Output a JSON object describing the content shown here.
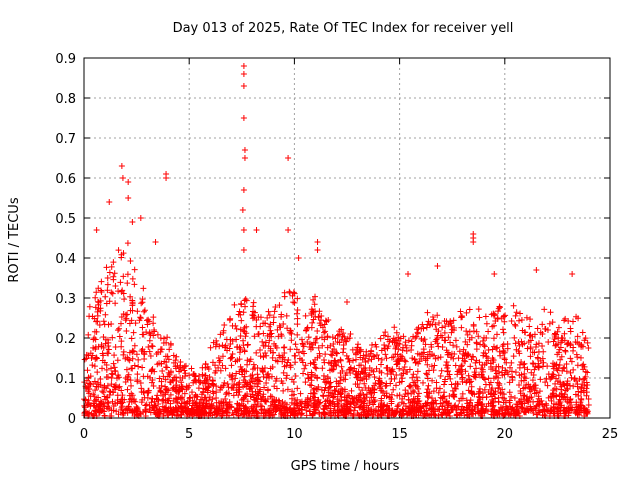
{
  "chart_data": {
    "type": "scatter",
    "title": "Day 013 of 2025, Rate Of TEC Index for receiver yell",
    "xlabel": "GPS time / hours",
    "ylabel": "ROTI / TECUs",
    "xlim": [
      0,
      25
    ],
    "ylim": [
      0,
      0.9
    ],
    "xticks": [
      0,
      5,
      10,
      15,
      20,
      25
    ],
    "xtick_labels": [
      "0",
      "5",
      "10",
      "15",
      "20",
      "25"
    ],
    "yticks": [
      0,
      0.1,
      0.2,
      0.3,
      0.4,
      0.5,
      0.6,
      0.7,
      0.8,
      0.9
    ],
    "ytick_labels": [
      "0",
      "0.1",
      "0.2",
      "0.3",
      "0.4",
      "0.5",
      "0.6",
      "0.7",
      "0.8",
      "0.9"
    ],
    "grid": true,
    "marker": "+",
    "series_color": "#ff0000",
    "x_range_of_data": [
      0,
      24
    ],
    "envelope": [
      [
        0.0,
        0.12
      ],
      [
        0.25,
        0.3
      ],
      [
        0.5,
        0.32
      ],
      [
        0.75,
        0.33
      ],
      [
        1.0,
        0.35
      ],
      [
        1.25,
        0.38
      ],
      [
        1.5,
        0.4
      ],
      [
        1.75,
        0.42
      ],
      [
        2.0,
        0.45
      ],
      [
        2.25,
        0.4
      ],
      [
        2.5,
        0.36
      ],
      [
        2.75,
        0.33
      ],
      [
        3.0,
        0.3
      ],
      [
        3.25,
        0.26
      ],
      [
        3.5,
        0.22
      ],
      [
        3.75,
        0.2
      ],
      [
        4.0,
        0.19
      ],
      [
        4.5,
        0.15
      ],
      [
        5.0,
        0.12
      ],
      [
        5.5,
        0.1
      ],
      [
        6.0,
        0.16
      ],
      [
        6.5,
        0.22
      ],
      [
        7.0,
        0.25
      ],
      [
        7.5,
        0.3
      ],
      [
        8.0,
        0.28
      ],
      [
        8.5,
        0.24
      ],
      [
        9.0,
        0.26
      ],
      [
        9.5,
        0.3
      ],
      [
        10.0,
        0.32
      ],
      [
        10.5,
        0.28
      ],
      [
        11.0,
        0.3
      ],
      [
        11.5,
        0.24
      ],
      [
        12.0,
        0.22
      ],
      [
        12.5,
        0.2
      ],
      [
        13.0,
        0.18
      ],
      [
        13.5,
        0.17
      ],
      [
        14.0,
        0.19
      ],
      [
        14.5,
        0.22
      ],
      [
        15.0,
        0.24
      ],
      [
        15.5,
        0.22
      ],
      [
        16.0,
        0.24
      ],
      [
        16.5,
        0.26
      ],
      [
        17.0,
        0.25
      ],
      [
        17.5,
        0.24
      ],
      [
        18.0,
        0.26
      ],
      [
        18.5,
        0.28
      ],
      [
        19.0,
        0.27
      ],
      [
        19.5,
        0.26
      ],
      [
        20.0,
        0.27
      ],
      [
        20.5,
        0.26
      ],
      [
        21.0,
        0.25
      ],
      [
        21.5,
        0.28
      ],
      [
        22.0,
        0.27
      ],
      [
        22.5,
        0.24
      ],
      [
        23.0,
        0.25
      ],
      [
        23.5,
        0.24
      ],
      [
        24.0,
        0.22
      ]
    ],
    "notable_points": [
      {
        "x": 1.2,
        "y": 0.54
      },
      {
        "x": 1.8,
        "y": 0.63
      },
      {
        "x": 1.85,
        "y": 0.6
      },
      {
        "x": 2.1,
        "y": 0.59
      },
      {
        "x": 2.1,
        "y": 0.55
      },
      {
        "x": 2.7,
        "y": 0.5
      },
      {
        "x": 3.4,
        "y": 0.44
      },
      {
        "x": 3.9,
        "y": 0.61
      },
      {
        "x": 3.9,
        "y": 0.6
      },
      {
        "x": 7.6,
        "y": 0.88
      },
      {
        "x": 7.6,
        "y": 0.86
      },
      {
        "x": 7.6,
        "y": 0.83
      },
      {
        "x": 7.6,
        "y": 0.75
      },
      {
        "x": 7.65,
        "y": 0.67
      },
      {
        "x": 7.65,
        "y": 0.65
      },
      {
        "x": 7.6,
        "y": 0.57
      },
      {
        "x": 7.55,
        "y": 0.52
      },
      {
        "x": 7.6,
        "y": 0.47
      },
      {
        "x": 7.6,
        "y": 0.42
      },
      {
        "x": 8.2,
        "y": 0.47
      },
      {
        "x": 9.7,
        "y": 0.65
      },
      {
        "x": 9.7,
        "y": 0.47
      },
      {
        "x": 11.1,
        "y": 0.44
      },
      {
        "x": 11.1,
        "y": 0.42
      },
      {
        "x": 16.8,
        "y": 0.38
      },
      {
        "x": 18.5,
        "y": 0.46
      },
      {
        "x": 18.5,
        "y": 0.45
      },
      {
        "x": 18.5,
        "y": 0.44
      },
      {
        "x": 21.5,
        "y": 0.37
      },
      {
        "x": 23.2,
        "y": 0.36
      },
      {
        "x": 15.4,
        "y": 0.36
      },
      {
        "x": 0.6,
        "y": 0.47
      },
      {
        "x": 2.3,
        "y": 0.49
      },
      {
        "x": 10.2,
        "y": 0.4
      },
      {
        "x": 12.5,
        "y": 0.29
      },
      {
        "x": 19.5,
        "y": 0.36
      }
    ]
  }
}
